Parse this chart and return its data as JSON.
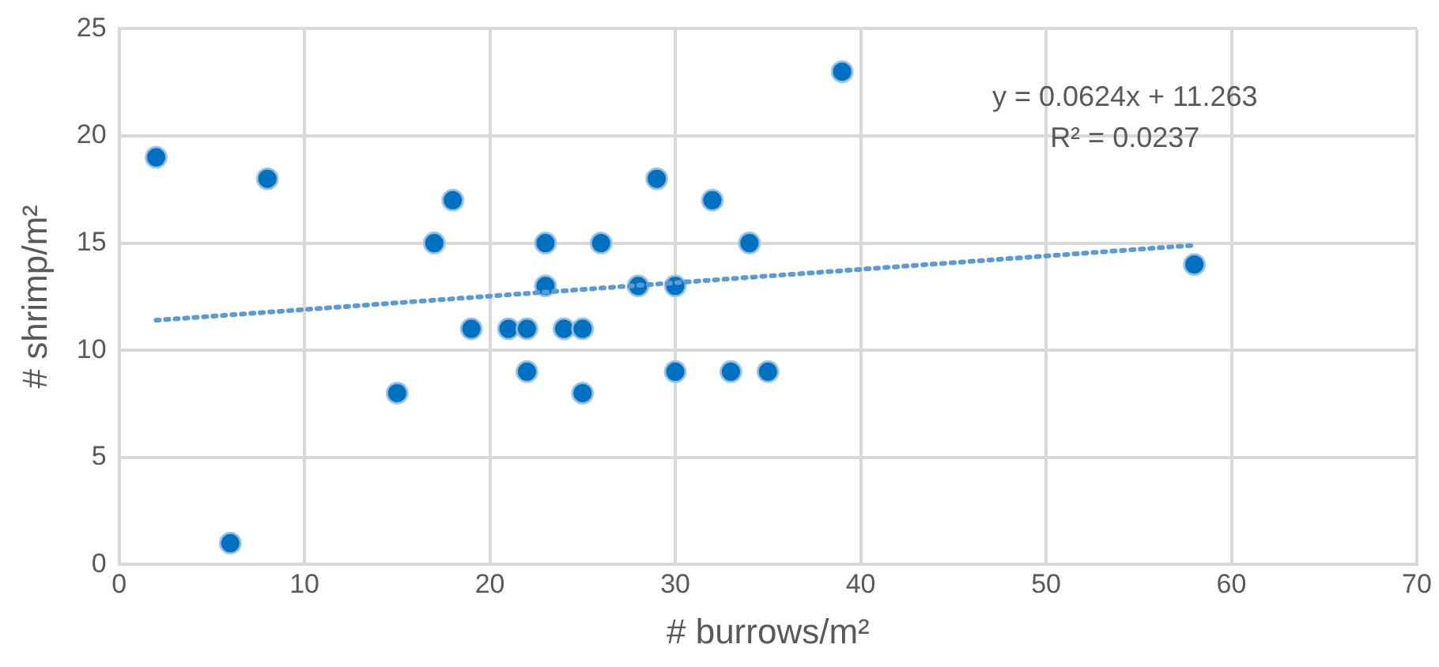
{
  "chart_data": {
    "type": "scatter",
    "xlabel": "# burrows/m²",
    "ylabel": "# shrimp/m²",
    "xlim": [
      0,
      70
    ],
    "xticks": [
      0,
      10,
      20,
      30,
      40,
      50,
      60,
      70
    ],
    "ylim": [
      0,
      25
    ],
    "yticks": [
      0,
      5,
      10,
      15,
      20,
      25
    ],
    "grid": true,
    "legend": false,
    "marker": "circle",
    "annotations": [
      "y = 0.0624x + 11.263",
      "R² = 0.0237"
    ],
    "series": [
      {
        "type": "scatter",
        "color": "#0070c0",
        "x": [
          2,
          6,
          8,
          15,
          17,
          18,
          19,
          21,
          22,
          22,
          23,
          23,
          24,
          25,
          25,
          26,
          28,
          29,
          30,
          30,
          32,
          33,
          34,
          35,
          39,
          58
        ],
        "values": [
          19,
          1,
          18,
          8,
          15,
          17,
          11,
          11,
          11,
          9,
          15,
          13,
          11,
          11,
          8,
          15,
          13,
          18,
          13,
          9,
          17,
          9,
          15,
          9,
          23,
          14
        ]
      },
      {
        "type": "line",
        "color": "#5b9bd5",
        "marker": "none",
        "line_style": "dotted",
        "x": [
          2,
          58
        ],
        "values": [
          11.4,
          14.9
        ]
      }
    ]
  }
}
